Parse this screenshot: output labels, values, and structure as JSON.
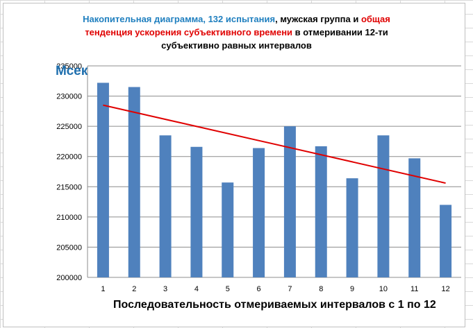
{
  "title": {
    "line1_part1": "Накопительная диаграмма, 132 испытания",
    "line1_part2": ", мужская группа и ",
    "line1_part3": "общая",
    "line2_part1": "тенденция ускорения субъективного времени",
    "line2_part2": " в отмеривании 12-ти",
    "line3": "субъективно равных интервалов"
  },
  "chart_data": {
    "type": "bar",
    "title": "Накопительная диаграмма, 132 испытания, мужская группа и общая тенденция ускорения субъективного времени в отмеривании 12-ти субъективно равных интервалов",
    "ylabel": "Мсек",
    "xlabel": "Последовательность отмериваемых интервалов с 1 по 12",
    "categories": [
      "1",
      "2",
      "3",
      "4",
      "5",
      "6",
      "7",
      "8",
      "9",
      "10",
      "11",
      "12"
    ],
    "values": [
      232200,
      231500,
      223500,
      221600,
      215700,
      221400,
      225000,
      221700,
      216400,
      223500,
      219700,
      212000
    ],
    "ylim": [
      200000,
      235000
    ],
    "yticks": [
      200000,
      205000,
      210000,
      215000,
      220000,
      225000,
      230000,
      235000
    ],
    "trendline": {
      "start": 228500,
      "end": 215600
    },
    "grid": true,
    "colors": {
      "bar": "#4f81bd",
      "trend": "#e00000",
      "grid": "#8c8c8c"
    }
  }
}
